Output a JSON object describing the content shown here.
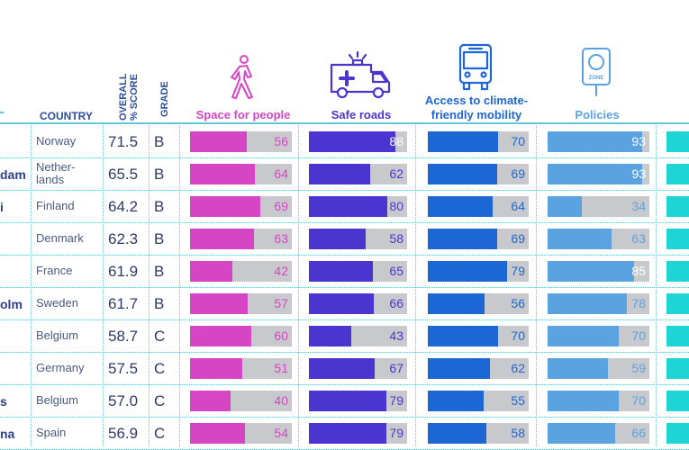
{
  "headers": {
    "country": "COUNTRY",
    "overall_line1": "OVERALL",
    "overall_line2": "% SCORE",
    "grade": "GRADE",
    "space": "Space for people",
    "safe": "Safe roads",
    "access_line1": "Access to climate-",
    "access_line2": "friendly mobility",
    "policies": "Policies",
    "zone_sign": "ZONE"
  },
  "colors": {
    "space": "#d646c4",
    "safe": "#4b35d1",
    "access": "#1d67d4",
    "policies": "#5aa2e0",
    "extra": "#1fd4d4",
    "bar_bg": "#c8c9cc",
    "grid": "#5fc7d6"
  },
  "icons": [
    "walking-person-icon",
    "ambulance-icon",
    "bus-icon",
    "zone-sign-icon"
  ],
  "chart_data": {
    "type": "table",
    "columns": [
      "City",
      "Country",
      "Overall % score",
      "Grade",
      "Space for people",
      "Safe roads",
      "Access to climate-friendly mobility",
      "Policies"
    ],
    "rows": [
      {
        "city": "",
        "country": "Norway",
        "score": "71.5",
        "grade": "B",
        "space": 56,
        "safe": 88,
        "access": 70,
        "policies": 93
      },
      {
        "city": "dam",
        "country": "Nether- lands",
        "score": "65.5",
        "grade": "B",
        "space": 64,
        "safe": 62,
        "access": 69,
        "policies": 93
      },
      {
        "city": "i",
        "country": "Finland",
        "score": "64.2",
        "grade": "B",
        "space": 69,
        "safe": 80,
        "access": 64,
        "policies": 34
      },
      {
        "city": "",
        "country": "Denmark",
        "score": "62.3",
        "grade": "B",
        "space": 63,
        "safe": 58,
        "access": 69,
        "policies": 63
      },
      {
        "city": "",
        "country": "France",
        "score": "61.9",
        "grade": "B",
        "space": 42,
        "safe": 65,
        "access": 79,
        "policies": 85
      },
      {
        "city": "olm",
        "country": "Sweden",
        "score": "61.7",
        "grade": "B",
        "space": 57,
        "safe": 66,
        "access": 56,
        "policies": 78
      },
      {
        "city": "",
        "country": "Belgium",
        "score": "58.7",
        "grade": "C",
        "space": 60,
        "safe": 43,
        "access": 70,
        "policies": 70
      },
      {
        "city": "",
        "country": "Germany",
        "score": "57.5",
        "grade": "C",
        "space": 51,
        "safe": 67,
        "access": 62,
        "policies": 59
      },
      {
        "city": "s",
        "country": "Belgium",
        "score": "57.0",
        "grade": "C",
        "space": 40,
        "safe": 79,
        "access": 55,
        "policies": 70
      },
      {
        "city": "na",
        "country": "Spain",
        "score": "56.9",
        "grade": "C",
        "space": 54,
        "safe": 79,
        "access": 58,
        "policies": 66
      }
    ],
    "max_value": 100
  }
}
